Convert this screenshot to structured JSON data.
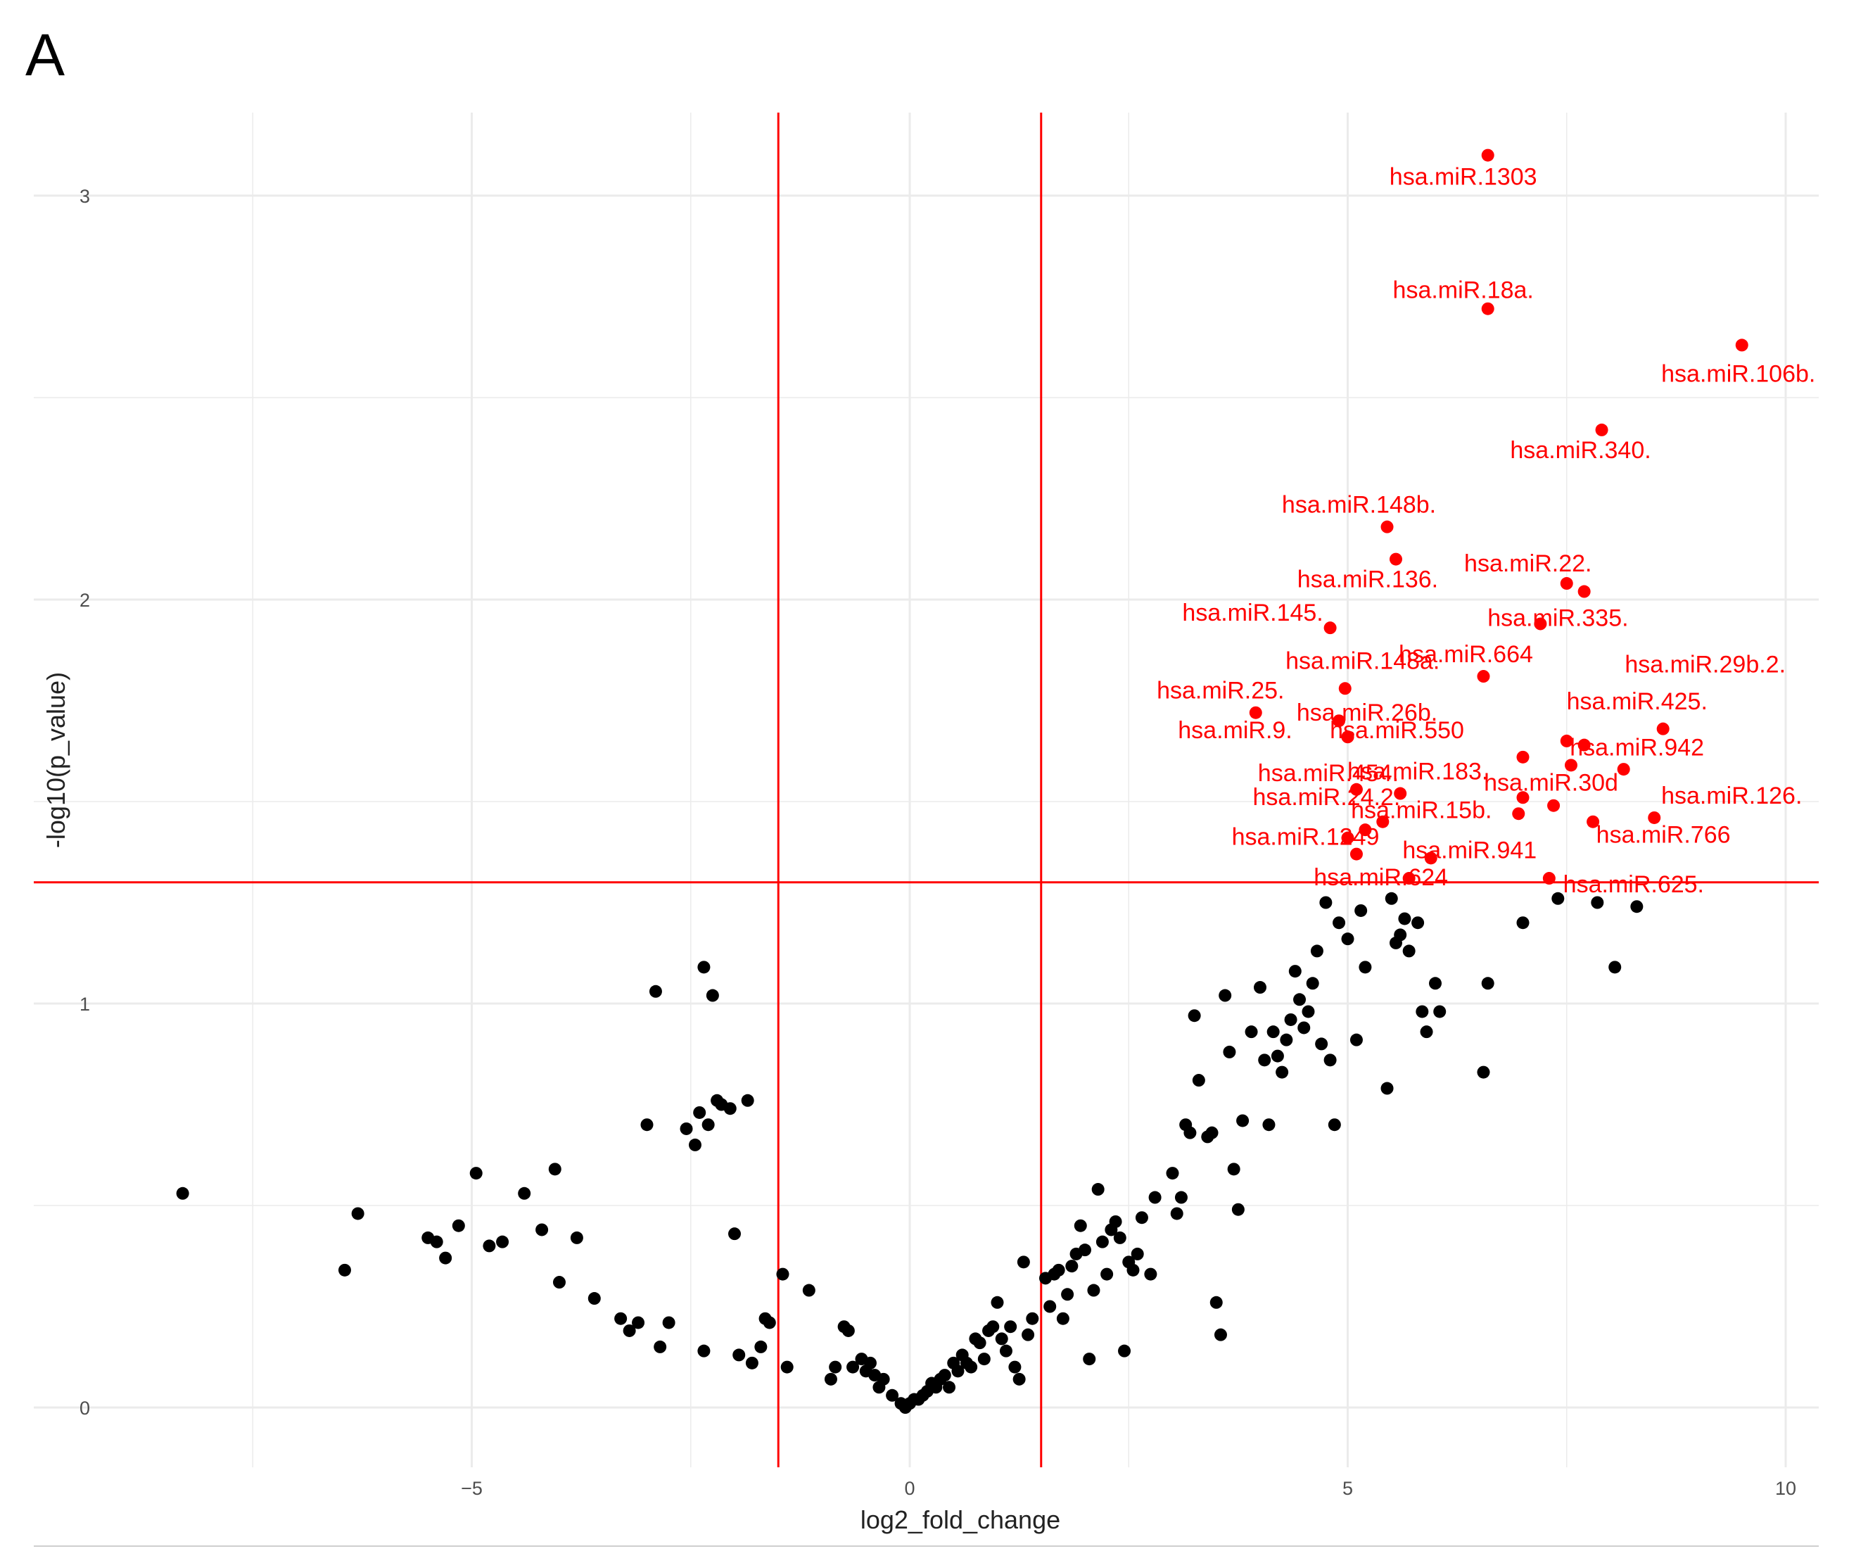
{
  "panel_letter": "A",
  "colors": {
    "significant": "#ff0000",
    "other": "#000000",
    "threshold": "#ff0000",
    "grid": "#ebebeb"
  },
  "chart_data": {
    "type": "scatter",
    "xlabel": "log2_fold_change",
    "ylabel": "-log10(p_value)",
    "xlim": [
      -8.3,
      10.4
    ],
    "ylim": [
      -0.14,
      3.2
    ],
    "x_ticks": [
      -5,
      0,
      5,
      10
    ],
    "y_ticks": [
      0,
      1,
      2,
      3
    ],
    "grid": true,
    "thresholds": {
      "vertical": [
        -1.5,
        1.5
      ],
      "horizontal": 1.3
    },
    "significant_points": [
      {
        "label": "hsa.miR.1303",
        "x": 6.6,
        "y": 3.1
      },
      {
        "label": "hsa.miR.18a.",
        "x": 6.6,
        "y": 2.72
      },
      {
        "label": "hsa.miR.106b.",
        "x": 9.5,
        "y": 2.63
      },
      {
        "label": "hsa.miR.340.",
        "x": 7.9,
        "y": 2.42
      },
      {
        "label": "hsa.miR.148b.",
        "x": 5.45,
        "y": 2.18
      },
      {
        "label": "hsa.miR.136.",
        "x": 5.55,
        "y": 2.1
      },
      {
        "label": "hsa.miR.22.",
        "x": 7.5,
        "y": 2.04
      },
      {
        "label": "",
        "x": 7.7,
        "y": 2.02
      },
      {
        "label": "hsa.miR.335.",
        "x": 7.2,
        "y": 1.94
      },
      {
        "label": "hsa.miR.145.",
        "x": 4.8,
        "y": 1.93
      },
      {
        "label": "hsa.miR.664",
        "x": 6.55,
        "y": 1.81
      },
      {
        "label": "hsa.miR.148a.",
        "x": 4.97,
        "y": 1.78
      },
      {
        "label": "hsa.miR.29b.2.",
        "x": 8.6,
        "y": 1.68
      },
      {
        "label": "hsa.miR.25.",
        "x": 3.95,
        "y": 1.72
      },
      {
        "label": "hsa.miR.26b.",
        "x": 4.9,
        "y": 1.7
      },
      {
        "label": "hsa.miR.425.",
        "x": 7.5,
        "y": 1.65
      },
      {
        "label": "hsa.miR.9.",
        "x": 5.0,
        "y": 1.66
      },
      {
        "label": "hsa.miR.550",
        "x": 5.0,
        "y": 1.66
      },
      {
        "label": "hsa.miR.942",
        "x": 7.7,
        "y": 1.64
      },
      {
        "label": "",
        "x": 7.0,
        "y": 1.61
      },
      {
        "label": "",
        "x": 7.55,
        "y": 1.59
      },
      {
        "label": "",
        "x": 8.15,
        "y": 1.58
      },
      {
        "label": "hsa.miR.454.",
        "x": 5.1,
        "y": 1.53
      },
      {
        "label": "hsa.miR.183.",
        "x": 5.6,
        "y": 1.52
      },
      {
        "label": "hsa.miR.30d",
        "x": 7.0,
        "y": 1.51
      },
      {
        "label": "hsa.miR.126.",
        "x": 8.5,
        "y": 1.46
      },
      {
        "label": "",
        "x": 7.35,
        "y": 1.49
      },
      {
        "label": "hsa.miR.24.2.",
        "x": 5.2,
        "y": 1.43
      },
      {
        "label": "hsa.miR.15b.",
        "x": 5.4,
        "y": 1.45
      },
      {
        "label": "",
        "x": 6.95,
        "y": 1.47
      },
      {
        "label": "hsa.miR.766",
        "x": 7.8,
        "y": 1.45
      },
      {
        "label": "hsa.miR.1249",
        "x": 5.0,
        "y": 1.41
      },
      {
        "label": "hsa.miR.941",
        "x": 5.95,
        "y": 1.36
      },
      {
        "label": "",
        "x": 5.1,
        "y": 1.37
      },
      {
        "label": "hsa.miR.624",
        "x": 5.7,
        "y": 1.31
      },
      {
        "label": "hsa.miR.625.",
        "x": 7.3,
        "y": 1.31
      }
    ],
    "other_points": [
      {
        "x": -8.3,
        "y": 0.53
      },
      {
        "x": -6.45,
        "y": 0.34
      },
      {
        "x": -6.3,
        "y": 0.48
      },
      {
        "x": -5.5,
        "y": 0.42
      },
      {
        "x": -5.4,
        "y": 0.41
      },
      {
        "x": -5.3,
        "y": 0.37
      },
      {
        "x": -5.15,
        "y": 0.45
      },
      {
        "x": -4.95,
        "y": 0.58
      },
      {
        "x": -4.8,
        "y": 0.4
      },
      {
        "x": -4.65,
        "y": 0.41
      },
      {
        "x": -4.4,
        "y": 0.53
      },
      {
        "x": -4.2,
        "y": 0.44
      },
      {
        "x": -4.05,
        "y": 0.59
      },
      {
        "x": -4.0,
        "y": 0.31
      },
      {
        "x": -3.8,
        "y": 0.42
      },
      {
        "x": -3.6,
        "y": 0.27
      },
      {
        "x": -3.3,
        "y": 0.22
      },
      {
        "x": -3.2,
        "y": 0.19
      },
      {
        "x": -3.1,
        "y": 0.21
      },
      {
        "x": -3.0,
        "y": 0.7
      },
      {
        "x": -2.9,
        "y": 1.03
      },
      {
        "x": -2.85,
        "y": 0.15
      },
      {
        "x": -2.75,
        "y": 0.21
      },
      {
        "x": -2.55,
        "y": 0.69
      },
      {
        "x": -2.45,
        "y": 0.65
      },
      {
        "x": -2.4,
        "y": 0.73
      },
      {
        "x": -2.35,
        "y": 1.09
      },
      {
        "x": -2.35,
        "y": 0.14
      },
      {
        "x": -2.3,
        "y": 0.7
      },
      {
        "x": -2.25,
        "y": 1.02
      },
      {
        "x": -2.2,
        "y": 0.76
      },
      {
        "x": -2.15,
        "y": 0.75
      },
      {
        "x": -2.05,
        "y": 0.74
      },
      {
        "x": -2.0,
        "y": 0.43
      },
      {
        "x": -1.95,
        "y": 0.13
      },
      {
        "x": -1.85,
        "y": 0.76
      },
      {
        "x": -1.8,
        "y": 0.11
      },
      {
        "x": -1.7,
        "y": 0.15
      },
      {
        "x": -1.65,
        "y": 0.22
      },
      {
        "x": -1.6,
        "y": 0.21
      },
      {
        "x": -1.45,
        "y": 0.33
      },
      {
        "x": -1.4,
        "y": 0.1
      },
      {
        "x": -1.15,
        "y": 0.29
      },
      {
        "x": -0.9,
        "y": 0.07
      },
      {
        "x": -0.85,
        "y": 0.1
      },
      {
        "x": -0.75,
        "y": 0.2
      },
      {
        "x": -0.7,
        "y": 0.19
      },
      {
        "x": -0.65,
        "y": 0.1
      },
      {
        "x": -0.55,
        "y": 0.12
      },
      {
        "x": -0.5,
        "y": 0.09
      },
      {
        "x": -0.45,
        "y": 0.11
      },
      {
        "x": -0.4,
        "y": 0.08
      },
      {
        "x": -0.35,
        "y": 0.05
      },
      {
        "x": -0.3,
        "y": 0.07
      },
      {
        "x": -0.2,
        "y": 0.03
      },
      {
        "x": -0.1,
        "y": 0.01
      },
      {
        "x": -0.05,
        "y": 0.0
      },
      {
        "x": 0.0,
        "y": 0.01
      },
      {
        "x": 0.05,
        "y": 0.02
      },
      {
        "x": 0.1,
        "y": 0.02
      },
      {
        "x": 0.15,
        "y": 0.03
      },
      {
        "x": 0.2,
        "y": 0.04
      },
      {
        "x": 0.25,
        "y": 0.06
      },
      {
        "x": 0.3,
        "y": 0.05
      },
      {
        "x": 0.35,
        "y": 0.07
      },
      {
        "x": 0.4,
        "y": 0.08
      },
      {
        "x": 0.45,
        "y": 0.05
      },
      {
        "x": 0.5,
        "y": 0.11
      },
      {
        "x": 0.55,
        "y": 0.09
      },
      {
        "x": 0.6,
        "y": 0.13
      },
      {
        "x": 0.65,
        "y": 0.11
      },
      {
        "x": 0.7,
        "y": 0.1
      },
      {
        "x": 0.75,
        "y": 0.17
      },
      {
        "x": 0.8,
        "y": 0.16
      },
      {
        "x": 0.85,
        "y": 0.12
      },
      {
        "x": 0.9,
        "y": 0.19
      },
      {
        "x": 0.95,
        "y": 0.2
      },
      {
        "x": 1.0,
        "y": 0.26
      },
      {
        "x": 1.05,
        "y": 0.17
      },
      {
        "x": 1.1,
        "y": 0.14
      },
      {
        "x": 1.15,
        "y": 0.2
      },
      {
        "x": 1.2,
        "y": 0.1
      },
      {
        "x": 1.25,
        "y": 0.07
      },
      {
        "x": 1.3,
        "y": 0.36
      },
      {
        "x": 1.35,
        "y": 0.18
      },
      {
        "x": 1.4,
        "y": 0.22
      },
      {
        "x": 1.55,
        "y": 0.32
      },
      {
        "x": 1.6,
        "y": 0.25
      },
      {
        "x": 1.65,
        "y": 0.33
      },
      {
        "x": 1.7,
        "y": 0.34
      },
      {
        "x": 1.75,
        "y": 0.22
      },
      {
        "x": 1.8,
        "y": 0.28
      },
      {
        "x": 1.85,
        "y": 0.35
      },
      {
        "x": 1.9,
        "y": 0.38
      },
      {
        "x": 1.95,
        "y": 0.45
      },
      {
        "x": 2.0,
        "y": 0.39
      },
      {
        "x": 2.05,
        "y": 0.12
      },
      {
        "x": 2.1,
        "y": 0.29
      },
      {
        "x": 2.15,
        "y": 0.54
      },
      {
        "x": 2.2,
        "y": 0.41
      },
      {
        "x": 2.25,
        "y": 0.33
      },
      {
        "x": 2.3,
        "y": 0.44
      },
      {
        "x": 2.35,
        "y": 0.46
      },
      {
        "x": 2.4,
        "y": 0.42
      },
      {
        "x": 2.45,
        "y": 0.14
      },
      {
        "x": 2.5,
        "y": 0.36
      },
      {
        "x": 2.55,
        "y": 0.34
      },
      {
        "x": 2.6,
        "y": 0.38
      },
      {
        "x": 2.65,
        "y": 0.47
      },
      {
        "x": 2.75,
        "y": 0.33
      },
      {
        "x": 2.8,
        "y": 0.52
      },
      {
        "x": 3.0,
        "y": 0.58
      },
      {
        "x": 3.05,
        "y": 0.48
      },
      {
        "x": 3.1,
        "y": 0.52
      },
      {
        "x": 3.15,
        "y": 0.7
      },
      {
        "x": 3.2,
        "y": 0.68
      },
      {
        "x": 3.25,
        "y": 0.97
      },
      {
        "x": 3.3,
        "y": 0.81
      },
      {
        "x": 3.4,
        "y": 0.67
      },
      {
        "x": 3.45,
        "y": 0.68
      },
      {
        "x": 3.5,
        "y": 0.26
      },
      {
        "x": 3.55,
        "y": 0.18
      },
      {
        "x": 3.6,
        "y": 1.02
      },
      {
        "x": 3.65,
        "y": 0.88
      },
      {
        "x": 3.7,
        "y": 0.59
      },
      {
        "x": 3.75,
        "y": 0.49
      },
      {
        "x": 3.8,
        "y": 0.71
      },
      {
        "x": 3.9,
        "y": 0.93
      },
      {
        "x": 4.0,
        "y": 1.04
      },
      {
        "x": 4.05,
        "y": 0.86
      },
      {
        "x": 4.1,
        "y": 0.7
      },
      {
        "x": 4.15,
        "y": 0.93
      },
      {
        "x": 4.2,
        "y": 0.87
      },
      {
        "x": 4.25,
        "y": 0.83
      },
      {
        "x": 4.3,
        "y": 0.91
      },
      {
        "x": 4.35,
        "y": 0.96
      },
      {
        "x": 4.4,
        "y": 1.08
      },
      {
        "x": 4.45,
        "y": 1.01
      },
      {
        "x": 4.5,
        "y": 0.94
      },
      {
        "x": 4.55,
        "y": 0.98
      },
      {
        "x": 4.6,
        "y": 1.05
      },
      {
        "x": 4.65,
        "y": 1.13
      },
      {
        "x": 4.7,
        "y": 0.9
      },
      {
        "x": 4.75,
        "y": 1.25
      },
      {
        "x": 4.8,
        "y": 0.86
      },
      {
        "x": 4.85,
        "y": 0.7
      },
      {
        "x": 4.9,
        "y": 1.2
      },
      {
        "x": 5.0,
        "y": 1.16
      },
      {
        "x": 5.1,
        "y": 0.91
      },
      {
        "x": 5.15,
        "y": 1.23
      },
      {
        "x": 5.2,
        "y": 1.09
      },
      {
        "x": 5.45,
        "y": 0.79
      },
      {
        "x": 5.5,
        "y": 1.26
      },
      {
        "x": 5.55,
        "y": 1.15
      },
      {
        "x": 5.6,
        "y": 1.17
      },
      {
        "x": 5.65,
        "y": 1.21
      },
      {
        "x": 5.7,
        "y": 1.13
      },
      {
        "x": 5.8,
        "y": 1.2
      },
      {
        "x": 5.85,
        "y": 0.98
      },
      {
        "x": 5.9,
        "y": 0.93
      },
      {
        "x": 6.0,
        "y": 1.05
      },
      {
        "x": 6.05,
        "y": 0.98
      },
      {
        "x": 6.55,
        "y": 0.83
      },
      {
        "x": 6.6,
        "y": 1.05
      },
      {
        "x": 7.0,
        "y": 1.2
      },
      {
        "x": 7.4,
        "y": 1.26
      },
      {
        "x": 7.85,
        "y": 1.25
      },
      {
        "x": 8.05,
        "y": 1.09
      },
      {
        "x": 8.3,
        "y": 1.24
      }
    ]
  }
}
